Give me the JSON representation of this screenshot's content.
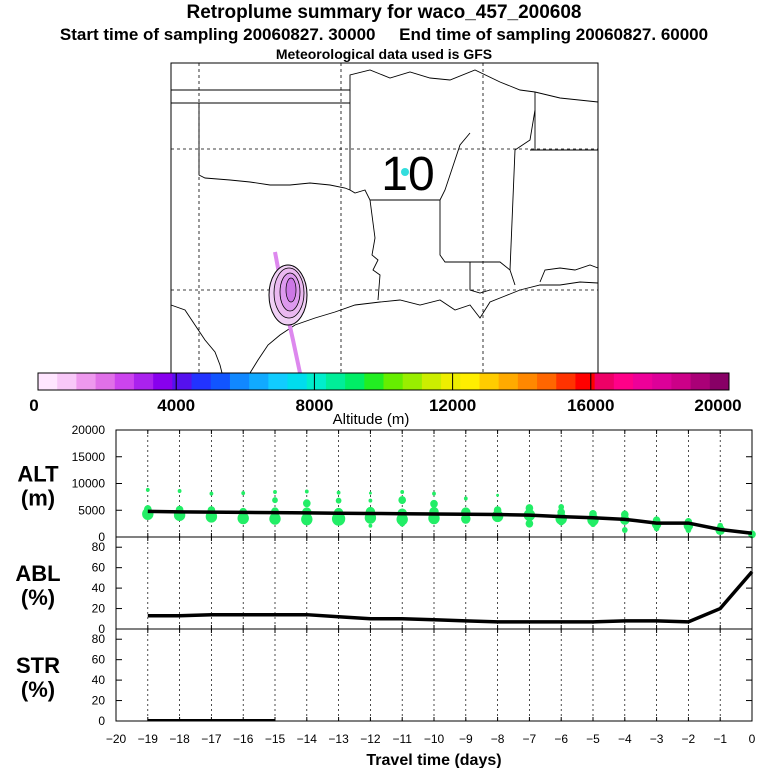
{
  "header": {
    "title": "Retroplume summary for waco_457_200608",
    "sampling_line": "Start time of sampling 20060827. 30000     End time of sampling 20060827. 60000",
    "met_line": "Meteorological data used is GFS"
  },
  "map": {
    "label": "10",
    "marker_color": "#33dddd",
    "plume_color": "#dd88ee"
  },
  "colorbar": {
    "label": "Altitude (m)",
    "ticks": [
      0,
      4000,
      8000,
      12000,
      16000,
      20000
    ],
    "colors": [
      "#ffe6ff",
      "#f8c8f8",
      "#ee99ee",
      "#e070e8",
      "#cc44ee",
      "#aa22ee",
      "#8800ee",
      "#5511ee",
      "#2233ff",
      "#1155ff",
      "#1188ff",
      "#11aaff",
      "#11ccff",
      "#00ddee",
      "#00eecc",
      "#00ee99",
      "#00ee66",
      "#22ee22",
      "#66ee00",
      "#99ee00",
      "#ccee00",
      "#eeee00",
      "#ffee00",
      "#ffcc00",
      "#ffaa00",
      "#ff8800",
      "#ff6600",
      "#ff3300",
      "#ff0000",
      "#ee0066",
      "#ff0088",
      "#ee0099",
      "#dd0099",
      "#cc0088",
      "#aa0077",
      "#880066"
    ]
  },
  "chart_data": [
    {
      "type": "line",
      "panel": "ALT",
      "ylabel": "ALT\n(m)",
      "xlabel": "Travel time (days)",
      "xlim": [
        -20,
        0
      ],
      "ylim": [
        0,
        20000
      ],
      "yticks": [
        0,
        5000,
        10000,
        15000,
        20000
      ],
      "x": [
        -19,
        -18,
        -17,
        -16,
        -15,
        -14,
        -13,
        -12,
        -11,
        -10,
        -9,
        -8,
        -7,
        -6,
        -5,
        -4,
        -3,
        -2,
        -1,
        0
      ],
      "values": [
        4800,
        4700,
        4650,
        4600,
        4550,
        4500,
        4450,
        4400,
        4350,
        4300,
        4250,
        4200,
        4100,
        3800,
        3600,
        3300,
        2600,
        2600,
        1400,
        700
      ],
      "point_color": "#22ee66",
      "points": [
        {
          "x": -19,
          "y": 4300,
          "s": 6
        },
        {
          "x": -19,
          "y": 5200,
          "s": 4
        },
        {
          "x": -19,
          "y": 8800,
          "s": 2
        },
        {
          "x": -18,
          "y": 4100,
          "s": 6
        },
        {
          "x": -18,
          "y": 5100,
          "s": 4
        },
        {
          "x": -18,
          "y": 8600,
          "s": 2
        },
        {
          "x": -17,
          "y": 3800,
          "s": 6
        },
        {
          "x": -17,
          "y": 5000,
          "s": 4
        },
        {
          "x": -17,
          "y": 8100,
          "s": 2
        },
        {
          "x": -16,
          "y": 3500,
          "s": 6
        },
        {
          "x": -16,
          "y": 4700,
          "s": 4
        },
        {
          "x": -16,
          "y": 8200,
          "s": 2
        },
        {
          "x": -15,
          "y": 3400,
          "s": 6
        },
        {
          "x": -15,
          "y": 4800,
          "s": 4
        },
        {
          "x": -15,
          "y": 6900,
          "s": 3
        },
        {
          "x": -15,
          "y": 8400,
          "s": 2
        },
        {
          "x": -14,
          "y": 3300,
          "s": 6
        },
        {
          "x": -14,
          "y": 4600,
          "s": 5
        },
        {
          "x": -14,
          "y": 6300,
          "s": 4
        },
        {
          "x": -14,
          "y": 8500,
          "s": 2
        },
        {
          "x": -13,
          "y": 3400,
          "s": 7
        },
        {
          "x": -13,
          "y": 4500,
          "s": 5
        },
        {
          "x": -13,
          "y": 6800,
          "s": 3
        },
        {
          "x": -13,
          "y": 8300,
          "s": 2
        },
        {
          "x": -12,
          "y": 3600,
          "s": 6
        },
        {
          "x": -12,
          "y": 4700,
          "s": 5
        },
        {
          "x": -12,
          "y": 2100,
          "s": 2
        },
        {
          "x": -12,
          "y": 6800,
          "s": 2
        },
        {
          "x": -12,
          "y": 8200,
          "s": 1.5
        },
        {
          "x": -11,
          "y": 3300,
          "s": 6
        },
        {
          "x": -11,
          "y": 4400,
          "s": 5
        },
        {
          "x": -11,
          "y": 6900,
          "s": 4
        },
        {
          "x": -11,
          "y": 2500,
          "s": 3
        },
        {
          "x": -11,
          "y": 8400,
          "s": 2
        },
        {
          "x": -10,
          "y": 3500,
          "s": 6
        },
        {
          "x": -10,
          "y": 4700,
          "s": 5
        },
        {
          "x": -10,
          "y": 6200,
          "s": 4
        },
        {
          "x": -10,
          "y": 8100,
          "s": 2
        },
        {
          "x": -9,
          "y": 3400,
          "s": 5
        },
        {
          "x": -9,
          "y": 4600,
          "s": 5
        },
        {
          "x": -9,
          "y": 7200,
          "s": 2
        },
        {
          "x": -8,
          "y": 3900,
          "s": 6
        },
        {
          "x": -8,
          "y": 5000,
          "s": 4
        },
        {
          "x": -8,
          "y": 7800,
          "s": 1.5
        },
        {
          "x": -7,
          "y": 4100,
          "s": 6
        },
        {
          "x": -7,
          "y": 5400,
          "s": 4
        },
        {
          "x": -7,
          "y": 2500,
          "s": 4
        },
        {
          "x": -6,
          "y": 3400,
          "s": 6
        },
        {
          "x": -6,
          "y": 4600,
          "s": 4
        },
        {
          "x": -6,
          "y": 5600,
          "s": 3
        },
        {
          "x": -6,
          "y": 2700,
          "s": 3
        },
        {
          "x": -5,
          "y": 3200,
          "s": 6
        },
        {
          "x": -5,
          "y": 4300,
          "s": 4
        },
        {
          "x": -5,
          "y": 2400,
          "s": 3
        },
        {
          "x": -4,
          "y": 3200,
          "s": 5
        },
        {
          "x": -4,
          "y": 4200,
          "s": 4
        },
        {
          "x": -4,
          "y": 1300,
          "s": 3
        },
        {
          "x": -3,
          "y": 2400,
          "s": 5
        },
        {
          "x": -3,
          "y": 3100,
          "s": 4
        },
        {
          "x": -3,
          "y": 1600,
          "s": 3
        },
        {
          "x": -2,
          "y": 2100,
          "s": 5
        },
        {
          "x": -2,
          "y": 2800,
          "s": 4
        },
        {
          "x": -2,
          "y": 1300,
          "s": 3
        },
        {
          "x": -1,
          "y": 1300,
          "s": 5
        },
        {
          "x": -1,
          "y": 2100,
          "s": 3
        },
        {
          "x": 0,
          "y": 500,
          "s": 4
        }
      ]
    },
    {
      "type": "line",
      "panel": "ABL",
      "ylabel": "ABL\n(%)",
      "xlim": [
        -20,
        0
      ],
      "ylim": [
        0,
        90
      ],
      "yticks": [
        0,
        20,
        40,
        60,
        80
      ],
      "x": [
        -19,
        -18,
        -17,
        -16,
        -15,
        -14,
        -13,
        -12,
        -11,
        -10,
        -9,
        -8,
        -7,
        -6,
        -5,
        -4,
        -3,
        -2,
        -1,
        0
      ],
      "values": [
        13,
        13,
        14,
        14,
        14,
        14,
        12,
        10,
        10,
        9,
        8,
        7,
        7,
        7,
        7,
        8,
        8,
        7,
        20,
        56
      ]
    },
    {
      "type": "line",
      "panel": "STR",
      "ylabel": "STR\n(%)",
      "xlabel": "Travel time (days)",
      "xlim": [
        -20,
        0
      ],
      "ylim": [
        0,
        90
      ],
      "yticks": [
        0,
        20,
        40,
        60,
        80
      ],
      "xticks": [
        -20,
        -19,
        -18,
        -17,
        -16,
        -15,
        -14,
        -13,
        -12,
        -11,
        -10,
        -9,
        -8,
        -7,
        -6,
        -5,
        -4,
        -3,
        -2,
        -1,
        0
      ],
      "x": [
        -19,
        -18,
        -17,
        -16,
        -15
      ],
      "values": [
        1,
        1,
        1,
        1,
        1
      ]
    }
  ]
}
